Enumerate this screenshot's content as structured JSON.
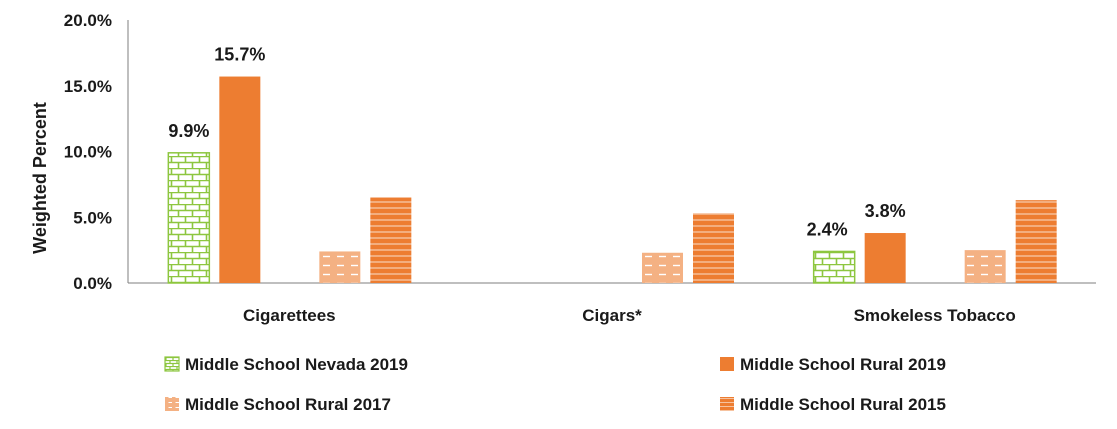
{
  "chart_data": {
    "type": "bar",
    "ylabel": "Weighted Percent",
    "xlabel": "",
    "ylim": [
      0,
      20
    ],
    "yticks": [
      "0.0%",
      "5.0%",
      "10.0%",
      "15.0%",
      "20.0%"
    ],
    "ytick_values": [
      0,
      5,
      10,
      15,
      20
    ],
    "grid": false,
    "legend_position": "bottom",
    "categories": [
      "Cigarettees",
      "Cigars*",
      "Smokeless Tobacco"
    ],
    "series": [
      {
        "name": "Middle School Nevada 2019",
        "values": [
          9.9,
          null,
          2.4
        ],
        "labels": [
          "9.9%",
          "",
          "2.4%"
        ],
        "color": "#8dc63f",
        "pattern": "brick"
      },
      {
        "name": "Middle School Rural 2019",
        "values": [
          15.7,
          null,
          3.8
        ],
        "labels": [
          "15.7%",
          "",
          "3.8%"
        ],
        "color": "#ed7d31",
        "pattern": "solid"
      },
      {
        "name": "Middle School Rural 2017",
        "values": [
          2.4,
          2.3,
          2.5
        ],
        "labels": [
          "",
          "",
          ""
        ],
        "color": "#f4b183",
        "pattern": "dashed"
      },
      {
        "name": "Middle School Rural 2015",
        "values": [
          6.5,
          5.3,
          6.3
        ],
        "labels": [
          "",
          "",
          ""
        ],
        "color": "#ed7d31",
        "pattern": "horizontal"
      }
    ]
  }
}
